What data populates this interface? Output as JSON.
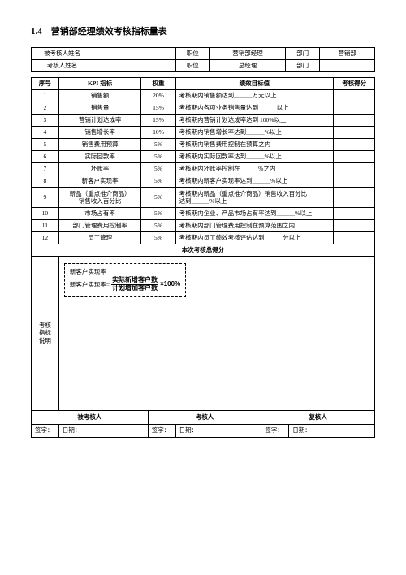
{
  "title": "1.4　营销部经理绩效考核指标量表",
  "hdr": {
    "r1c1": "被考核人姓名",
    "r1c3": "职位",
    "r1c4": "营销部经理",
    "r1c5": "部门",
    "r1c6": "营销部",
    "r2c1": "考核人姓名",
    "r2c3": "职位",
    "r2c4": "总经理",
    "r2c5": "部门"
  },
  "kpi_head": {
    "no": "序号",
    "name": "KPI 指标",
    "weight": "权重",
    "target": "绩效目标值",
    "score": "考核得分"
  },
  "rows": [
    {
      "no": "1",
      "name": "销售额",
      "weight": "20%",
      "target": "考核期内销售额达到＿＿＿万元以上"
    },
    {
      "no": "2",
      "name": "销售量",
      "weight": "15%",
      "target": "考核期内各项业务销售量达到＿＿＿以上"
    },
    {
      "no": "3",
      "name": "营销计划达成率",
      "weight": "15%",
      "target": "考核期内营销计划达成率达到 100%以上"
    },
    {
      "no": "4",
      "name": "销售增长率",
      "weight": "10%",
      "target": "考核期内销售增长率达到＿＿＿%以上"
    },
    {
      "no": "5",
      "name": "销售费用预算",
      "weight": "5%",
      "target": "考核期内销售费用控制在预算之内"
    },
    {
      "no": "6",
      "name": "实际回款率",
      "weight": "5%",
      "target": "考核期内实际回款率达到＿＿＿%以上"
    },
    {
      "no": "7",
      "name": "坏账率",
      "weight": "5%",
      "target": "考核期内坏账率控制在＿＿＿%之内"
    },
    {
      "no": "8",
      "name": "新客户实现率",
      "weight": "5%",
      "target": "考核期内新客户实现率达到＿＿＿%以上"
    },
    {
      "no": "9",
      "name": "新品（重点推介商品）\n销售收入百分比",
      "weight": "5%",
      "target": "考核期内新品（重点推介商品）销售收入百分比\n达到＿＿＿%以上"
    },
    {
      "no": "10",
      "name": "市场占有率",
      "weight": "5%",
      "target": "考核期内企业、产品市场占有率达到＿＿＿%以上"
    },
    {
      "no": "11",
      "name": "部门管理费用控制率",
      "weight": "5%",
      "target": "考核期内部门管理费用控制在预算范围之内"
    },
    {
      "no": "12",
      "name": "员工管理",
      "weight": "5%",
      "target": "考核期内员工绩效考核评估达到＿＿＿分以上"
    }
  ],
  "total_label": "本次考核总得分",
  "desc": {
    "label": "考核\n指标\n说明",
    "formula_title": "新客户实现率",
    "formula_lhs": "新客户实现率=",
    "num": "实际新增客户数",
    "den": "计划增加客户数",
    "tail": "×100%"
  },
  "sig": {
    "c1": "被考核人",
    "c2": "考核人",
    "c3": "复核人",
    "sign": "签字：",
    "date": "日期："
  }
}
